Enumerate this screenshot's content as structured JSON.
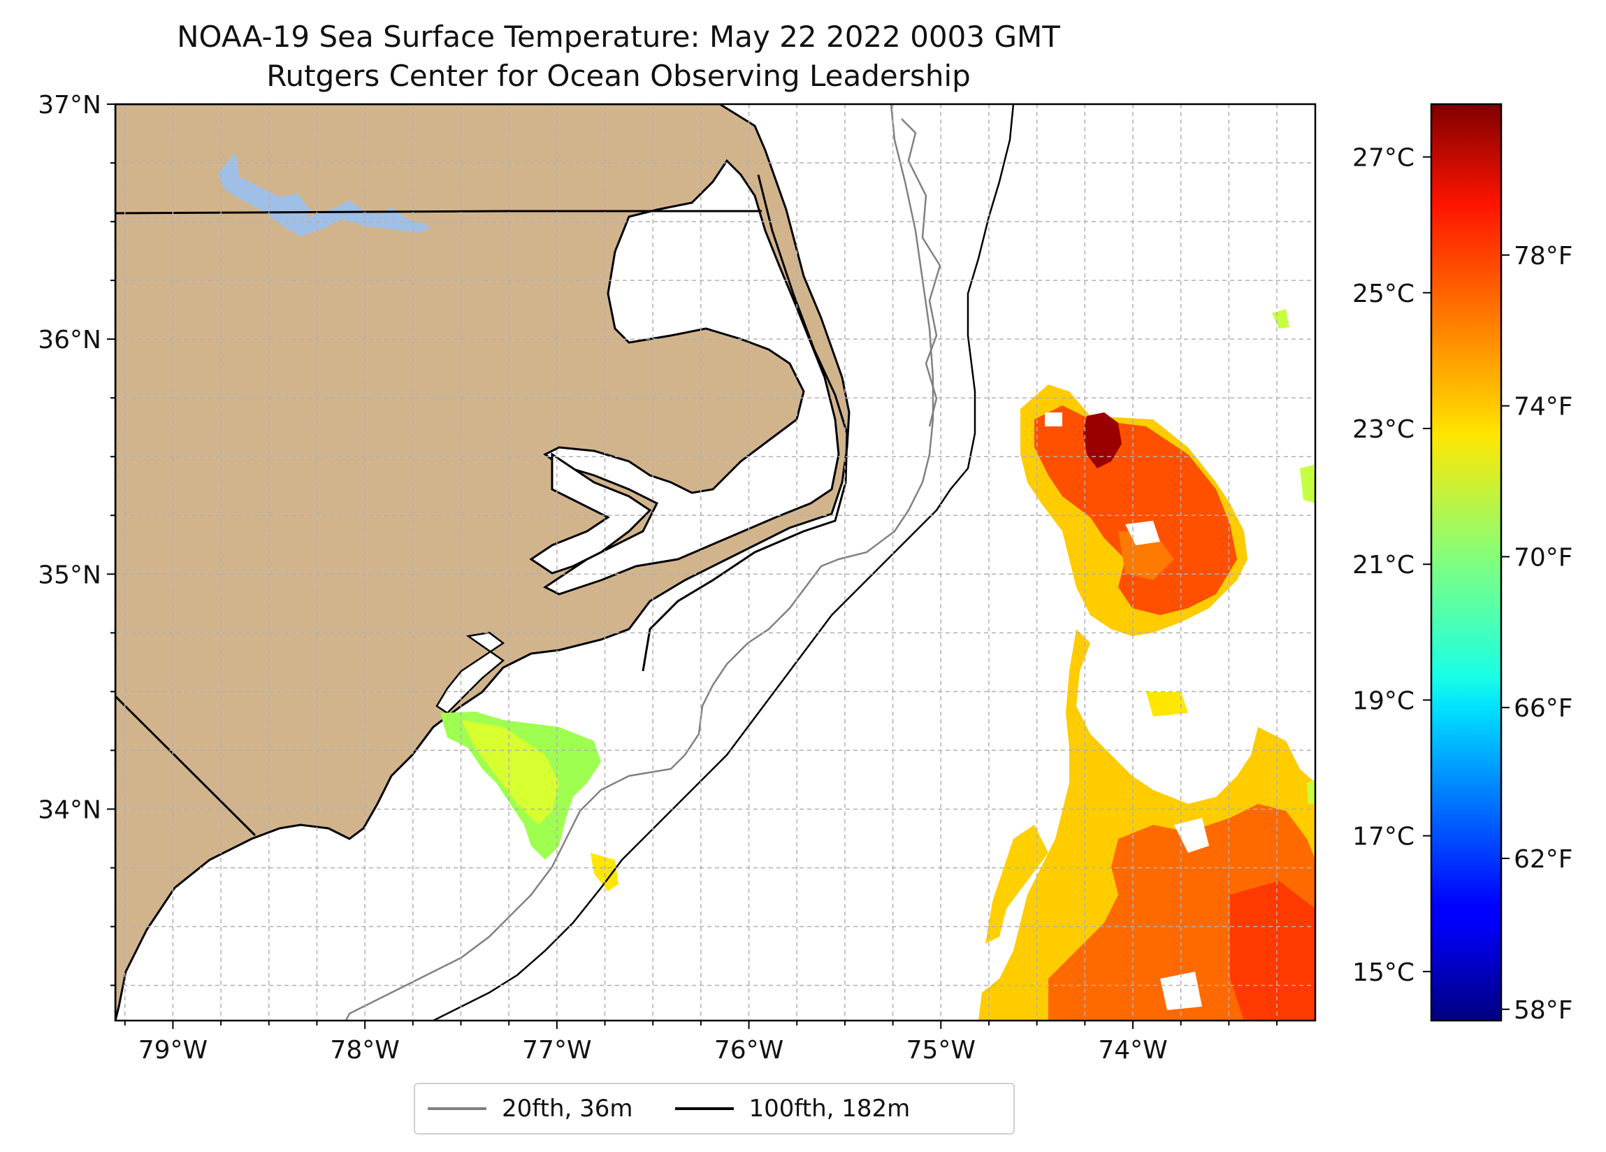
{
  "title": "NOAA-19 Sea Surface Temperature: May 22 2022 0003 GMT",
  "subtitle": "Rutgers Center for Ocean Observing Leadership",
  "map": {
    "extent": {
      "lon_min": -79.3,
      "lon_max": -73.05,
      "lat_min": 33.1,
      "lat_max": 37.0
    },
    "lat_ticks": [
      {
        "value": 37,
        "label": "37°N"
      },
      {
        "value": 36,
        "label": "36°N"
      },
      {
        "value": 35,
        "label": "35°N"
      },
      {
        "value": 34,
        "label": "34°N"
      }
    ],
    "lon_ticks": [
      {
        "value": -79,
        "label": "79°W"
      },
      {
        "value": -78,
        "label": "78°W"
      },
      {
        "value": -77,
        "label": "77°W"
      },
      {
        "value": -76,
        "label": "76°W"
      },
      {
        "value": -75,
        "label": "75°W"
      },
      {
        "value": -74,
        "label": "74°W"
      }
    ],
    "grid": true,
    "land_color": "#d2b48c",
    "water_body_color": "#9fbfe6",
    "coastline_color": "#000000"
  },
  "colorbar": {
    "celsius_ticks": [
      {
        "value": 27,
        "label": "27°C"
      },
      {
        "value": 25,
        "label": "25°C"
      },
      {
        "value": 23,
        "label": "23°C"
      },
      {
        "value": 21,
        "label": "21°C"
      },
      {
        "value": 19,
        "label": "19°C"
      },
      {
        "value": 17,
        "label": "17°C"
      },
      {
        "value": 15,
        "label": "15°C"
      }
    ],
    "fahrenheit_ticks": [
      {
        "value": 78,
        "label": "78°F"
      },
      {
        "value": 74,
        "label": "74°F"
      },
      {
        "value": 70,
        "label": "70°F"
      },
      {
        "value": 66,
        "label": "66°F"
      },
      {
        "value": 62,
        "label": "62°F"
      },
      {
        "value": 58,
        "label": "58°F"
      }
    ],
    "range_f": [
      57.7,
      82.0
    ],
    "colormap": "jet"
  },
  "legend": {
    "items": [
      {
        "label": "20fth, 36m",
        "color": "#808080"
      },
      {
        "label": "100fth, 182m",
        "color": "#000000"
      }
    ],
    "placement": "bottom-center"
  }
}
